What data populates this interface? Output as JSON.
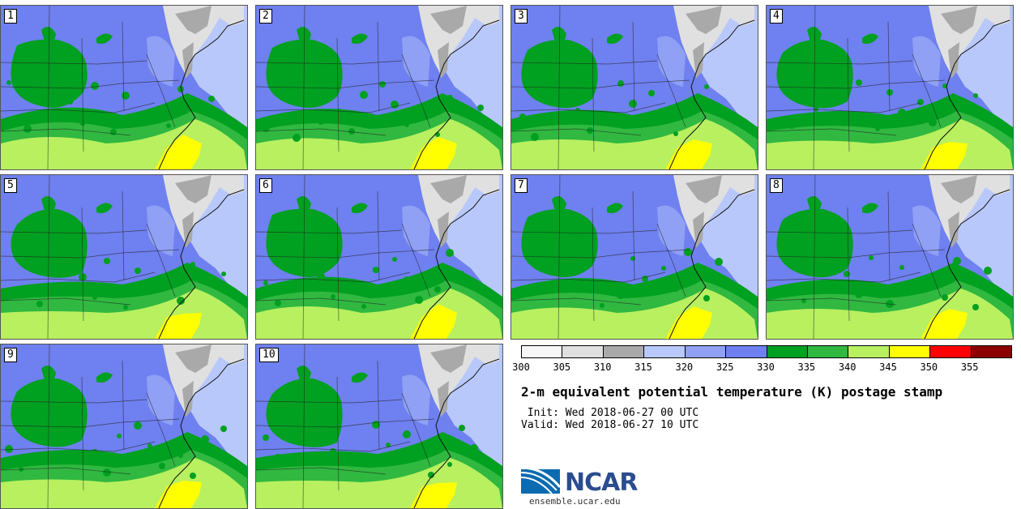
{
  "panels": [
    {
      "label": "1"
    },
    {
      "label": "2"
    },
    {
      "label": "3"
    },
    {
      "label": "4"
    },
    {
      "label": "5"
    },
    {
      "label": "6"
    },
    {
      "label": "7"
    },
    {
      "label": "8"
    },
    {
      "label": "9"
    },
    {
      "label": "10"
    }
  ],
  "legend": {
    "ticks": [
      "300",
      "305",
      "310",
      "315",
      "320",
      "325",
      "330",
      "335",
      "340",
      "345",
      "350",
      "355"
    ],
    "colors": [
      "#f7f7f7",
      "#e0e0e0",
      "#a9a9a9",
      "#b8c8fa",
      "#8fa0f5",
      "#6f80f0",
      "#00a020",
      "#30b840",
      "#b8f060",
      "#ffff00",
      "#ff0000",
      "#8b0000"
    ]
  },
  "title": "2-m equivalent potential temperature (K) postage stamp",
  "init_line": " Init: Wed 2018-06-27 00 UTC",
  "valid_line": "Valid: Wed 2018-06-27 10 UTC",
  "logo": {
    "text": "NCAR",
    "website": "ensemble.ucar.edu"
  }
}
